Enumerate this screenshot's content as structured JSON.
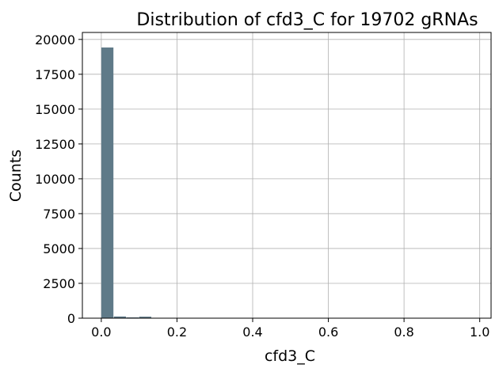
{
  "chart_data": {
    "type": "bar",
    "title": "Distribution of cfd3_C for 19702 gRNAs",
    "xlabel": "cfd3_C",
    "ylabel": "Counts",
    "xlim": [
      -0.05,
      1.03
    ],
    "ylim": [
      0,
      20500
    ],
    "xticks": [
      0.0,
      0.2,
      0.4,
      0.6,
      0.8,
      1.0
    ],
    "xtick_labels": [
      "0.0",
      "0.2",
      "0.4",
      "0.6",
      "0.8",
      "1.0"
    ],
    "yticks": [
      0,
      2500,
      5000,
      7500,
      10000,
      12500,
      15000,
      17500,
      20000
    ],
    "ytick_labels": [
      "0",
      "2500",
      "5000",
      "7500",
      "10000",
      "12500",
      "15000",
      "17500",
      "20000"
    ],
    "grid": true,
    "bar_color": "#5f7a88",
    "bins": [
      {
        "start": 0.0,
        "end": 0.0333,
        "count": 19420
      },
      {
        "start": 0.0333,
        "end": 0.0667,
        "count": 120
      },
      {
        "start": 0.0667,
        "end": 0.1,
        "count": 55
      },
      {
        "start": 0.1,
        "end": 0.1333,
        "count": 107
      }
    ]
  }
}
